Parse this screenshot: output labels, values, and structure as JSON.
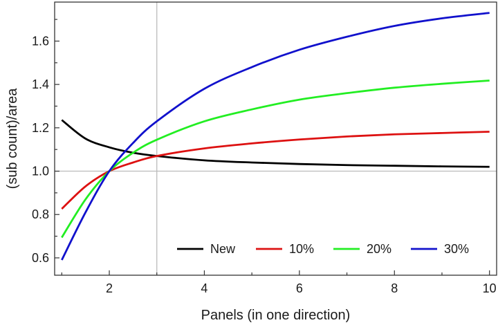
{
  "chart_data": {
    "type": "line",
    "title": "",
    "xlabel": "Panels (in one direction)",
    "ylabel": "(sub count)/area",
    "xlim": [
      0.85,
      10.15
    ],
    "ylim": [
      0.52,
      1.78
    ],
    "xticks": [
      2,
      4,
      6,
      8,
      10
    ],
    "yticks": [
      0.6,
      0.8,
      1.0,
      1.2,
      1.4,
      1.6
    ],
    "xtick_labels": [
      "2",
      "4",
      "6",
      "8",
      "10"
    ],
    "ytick_labels": [
      "0.6",
      "0.8",
      "1.0",
      "1.2",
      "1.4",
      "1.6"
    ],
    "grid": false,
    "reference_lines": {
      "x": 3,
      "y": 1.0,
      "color": "#bbbbbb"
    },
    "legend": {
      "placement": "bottom-right"
    },
    "x": [
      1,
      1.5,
      2,
      2.5,
      3,
      4,
      5,
      6,
      7,
      8,
      9,
      10
    ],
    "series": [
      {
        "name": "New",
        "color": "#000000",
        "values": [
          1.236,
          1.15,
          1.11,
          1.085,
          1.07,
          1.05,
          1.04,
          1.033,
          1.028,
          1.025,
          1.022,
          1.02
        ]
      },
      {
        "name": "10%",
        "color": "#dd1111",
        "values": [
          0.826,
          0.93,
          1.0,
          1.04,
          1.07,
          1.105,
          1.128,
          1.146,
          1.16,
          1.17,
          1.176,
          1.182
        ]
      },
      {
        "name": "20%",
        "color": "#22ee22",
        "values": [
          0.694,
          0.87,
          1.0,
          1.085,
          1.145,
          1.23,
          1.285,
          1.33,
          1.36,
          1.385,
          1.403,
          1.418
        ]
      },
      {
        "name": "30%",
        "color": "#1111cc",
        "values": [
          0.59,
          0.81,
          1.0,
          1.13,
          1.23,
          1.38,
          1.48,
          1.56,
          1.62,
          1.67,
          1.705,
          1.73
        ]
      }
    ]
  }
}
